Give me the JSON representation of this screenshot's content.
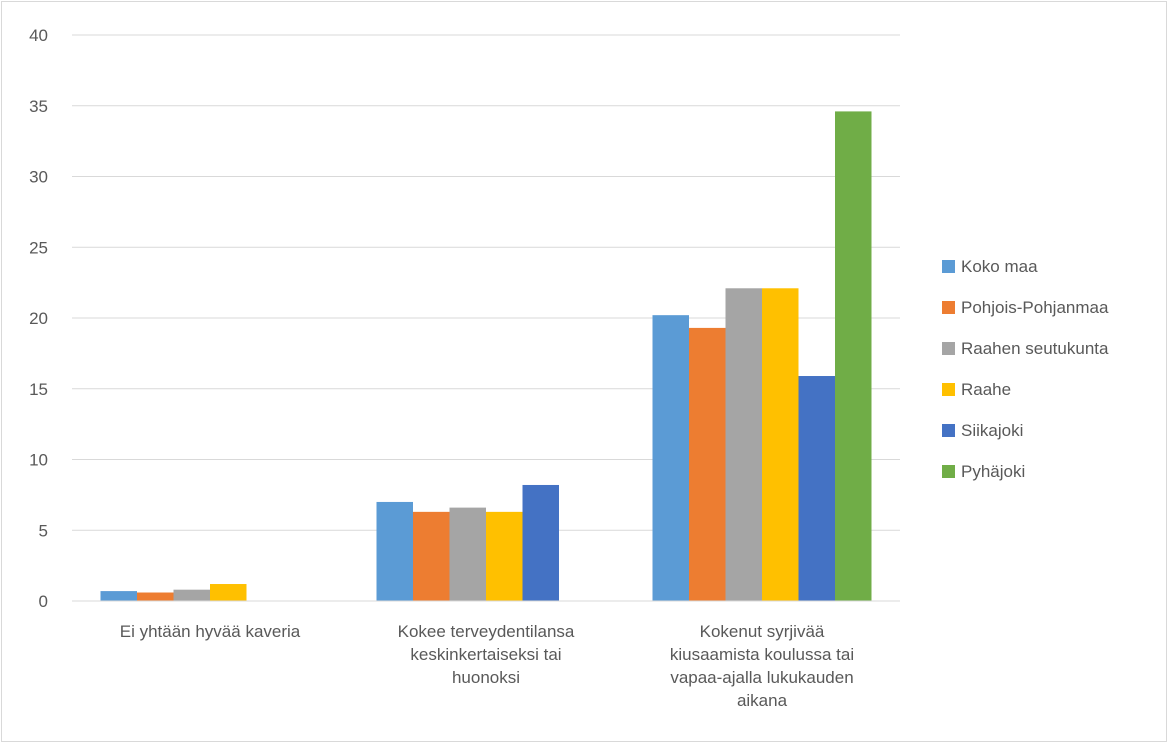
{
  "chart_data": {
    "type": "bar",
    "title": "",
    "xlabel": "",
    "ylabel": "",
    "ylim": [
      0,
      40
    ],
    "yticks": [
      0,
      5,
      10,
      15,
      20,
      25,
      30,
      35,
      40
    ],
    "grid": true,
    "legend_position": "right",
    "categories": [
      [
        "Ei yhtään hyvää kaveria"
      ],
      [
        "Kokee terveydentilansa",
        "keskinkertaiseksi tai",
        "huonoksi"
      ],
      [
        "Kokenut syrjivää",
        "kiusaamista koulussa tai",
        "vapaa-ajalla lukukauden",
        "aikana"
      ]
    ],
    "series": [
      {
        "name": "Koko maa",
        "color": "#5b9bd5",
        "values": [
          0.7,
          7.0,
          20.2
        ]
      },
      {
        "name": "Pohjois-Pohjanmaa",
        "color": "#ed7d31",
        "values": [
          0.6,
          6.3,
          19.3
        ]
      },
      {
        "name": "Raahen seutukunta",
        "color": "#a5a5a5",
        "values": [
          0.8,
          6.6,
          22.1
        ]
      },
      {
        "name": "Raahe",
        "color": "#ffc000",
        "values": [
          1.2,
          6.3,
          22.1
        ]
      },
      {
        "name": "Siikajoki",
        "color": "#4472c4",
        "values": [
          null,
          8.2,
          15.9
        ]
      },
      {
        "name": "Pyhäjoki",
        "color": "#70ad47",
        "values": [
          null,
          null,
          34.6
        ]
      }
    ]
  }
}
